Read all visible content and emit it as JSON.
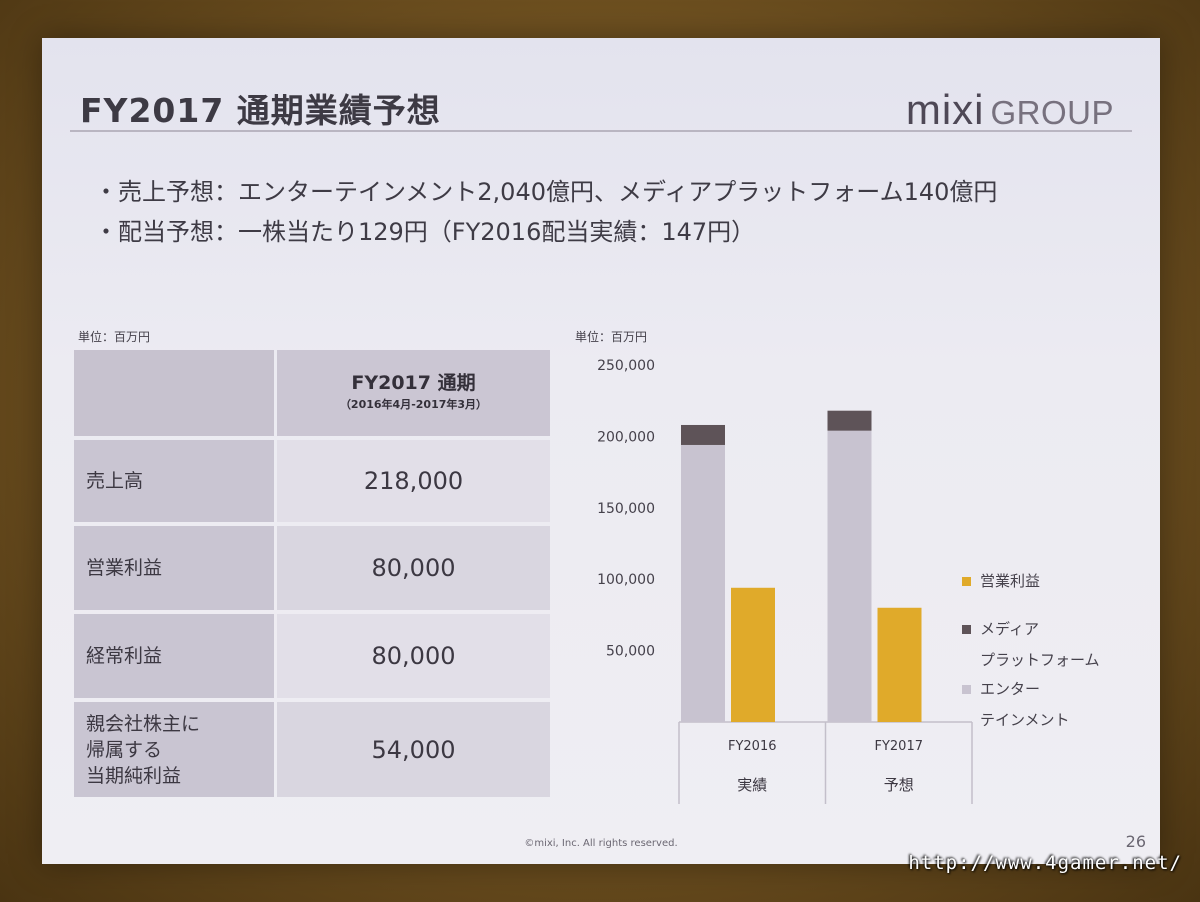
{
  "slide": {
    "title": "FY2017 通期業績予想",
    "logo_mixi": "mixi",
    "logo_group": "GROUP",
    "bullets": [
      "・売上予想：エンターテインメント2,040億円、メディアプラットフォーム140億円",
      "・配当予想：一株当たり129円（FY2016配当実績：147円）"
    ],
    "footer": "©mixi, Inc. All rights reserved.",
    "page_number": "26"
  },
  "table": {
    "unit": "単位：百万円",
    "header": "FY2017 通期",
    "header_sub": "（2016年4月-2017年3月）",
    "rows": [
      {
        "label": "売上高",
        "value": "218,000"
      },
      {
        "label": "営業利益",
        "value": "80,000"
      },
      {
        "label": "経常利益",
        "value": "80,000"
      },
      {
        "label": "親会社株主に\n帰属する\n当期純利益",
        "value": "54,000"
      }
    ]
  },
  "chart_data": {
    "type": "bar",
    "unit": "単位：百万円",
    "categories": [
      "FY2016",
      "FY2017"
    ],
    "category_sublabels": [
      "実績",
      "予想"
    ],
    "ylim": [
      0,
      250000
    ],
    "yticks": [
      50000,
      100000,
      150000,
      200000,
      250000
    ],
    "ytick_labels": [
      "50,000",
      "100,000",
      "150,000",
      "200,000",
      "250,000"
    ],
    "series": [
      {
        "name": "エンターテインメント",
        "values": [
          194000,
          204000
        ],
        "color": "#c8c3d0",
        "stack": "sales"
      },
      {
        "name": "メディアプラットフォーム",
        "values": [
          14000,
          14000
        ],
        "color": "#5e5358",
        "stack": "sales"
      },
      {
        "name": "営業利益",
        "values": [
          94000,
          80000
        ],
        "color": "#e0aa2a",
        "stack": "profit"
      }
    ],
    "legend": [
      {
        "label": "営業利益",
        "color": "#e0aa2a"
      },
      {
        "label": "メディア\nプラットフォーム",
        "color": "#5e5358"
      },
      {
        "label": "エンター\nテインメント",
        "color": "#c8c3d0"
      }
    ],
    "legend_position": "right"
  },
  "watermark": "http://www.4gamer.net/"
}
